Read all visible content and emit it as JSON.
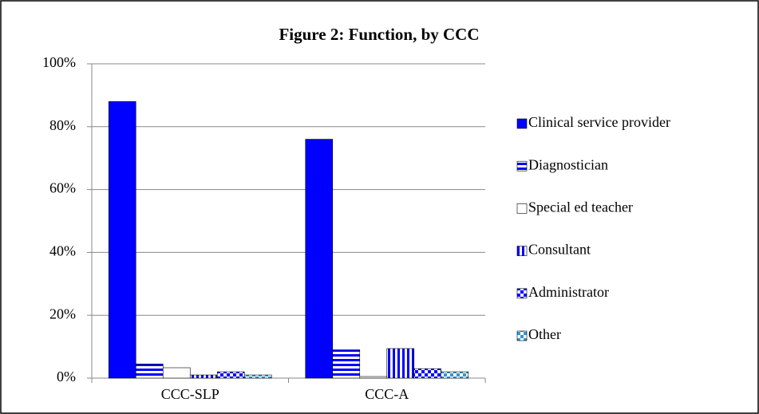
{
  "chart_data": {
    "type": "bar",
    "title": "Figure 2: Function,  by CCC",
    "categories": [
      "CCC-SLP",
      "CCC-A"
    ],
    "series": [
      {
        "name": "Clinical service provider",
        "color": "#0000ff",
        "pattern": "solid",
        "values": [
          88,
          76
        ]
      },
      {
        "name": "Diagnostician",
        "color": "#0000ff",
        "pattern": "hstripes",
        "values": [
          4.5,
          9
        ]
      },
      {
        "name": "Special ed teacher",
        "color": "#ffffff",
        "pattern": "solid",
        "values": [
          3.3,
          0.5
        ]
      },
      {
        "name": "Consultant",
        "color": "#0000ff",
        "pattern": "vstripes",
        "values": [
          1,
          9.4
        ]
      },
      {
        "name": "Administrator",
        "color": "#0000ff",
        "pattern": "checker",
        "values": [
          2,
          3
        ]
      },
      {
        "name": "Other",
        "color": "#3399cc",
        "pattern": "checker",
        "values": [
          1,
          2
        ]
      }
    ],
    "ylim": [
      0,
      100
    ],
    "yticks": [
      {
        "value": 0,
        "label": "0%"
      },
      {
        "value": 20,
        "label": "20%"
      },
      {
        "value": 40,
        "label": "40%"
      },
      {
        "value": 60,
        "label": "60%"
      },
      {
        "value": 80,
        "label": "80%"
      },
      {
        "value": 100,
        "label": "100%"
      }
    ],
    "grid": true,
    "legend": "right"
  }
}
